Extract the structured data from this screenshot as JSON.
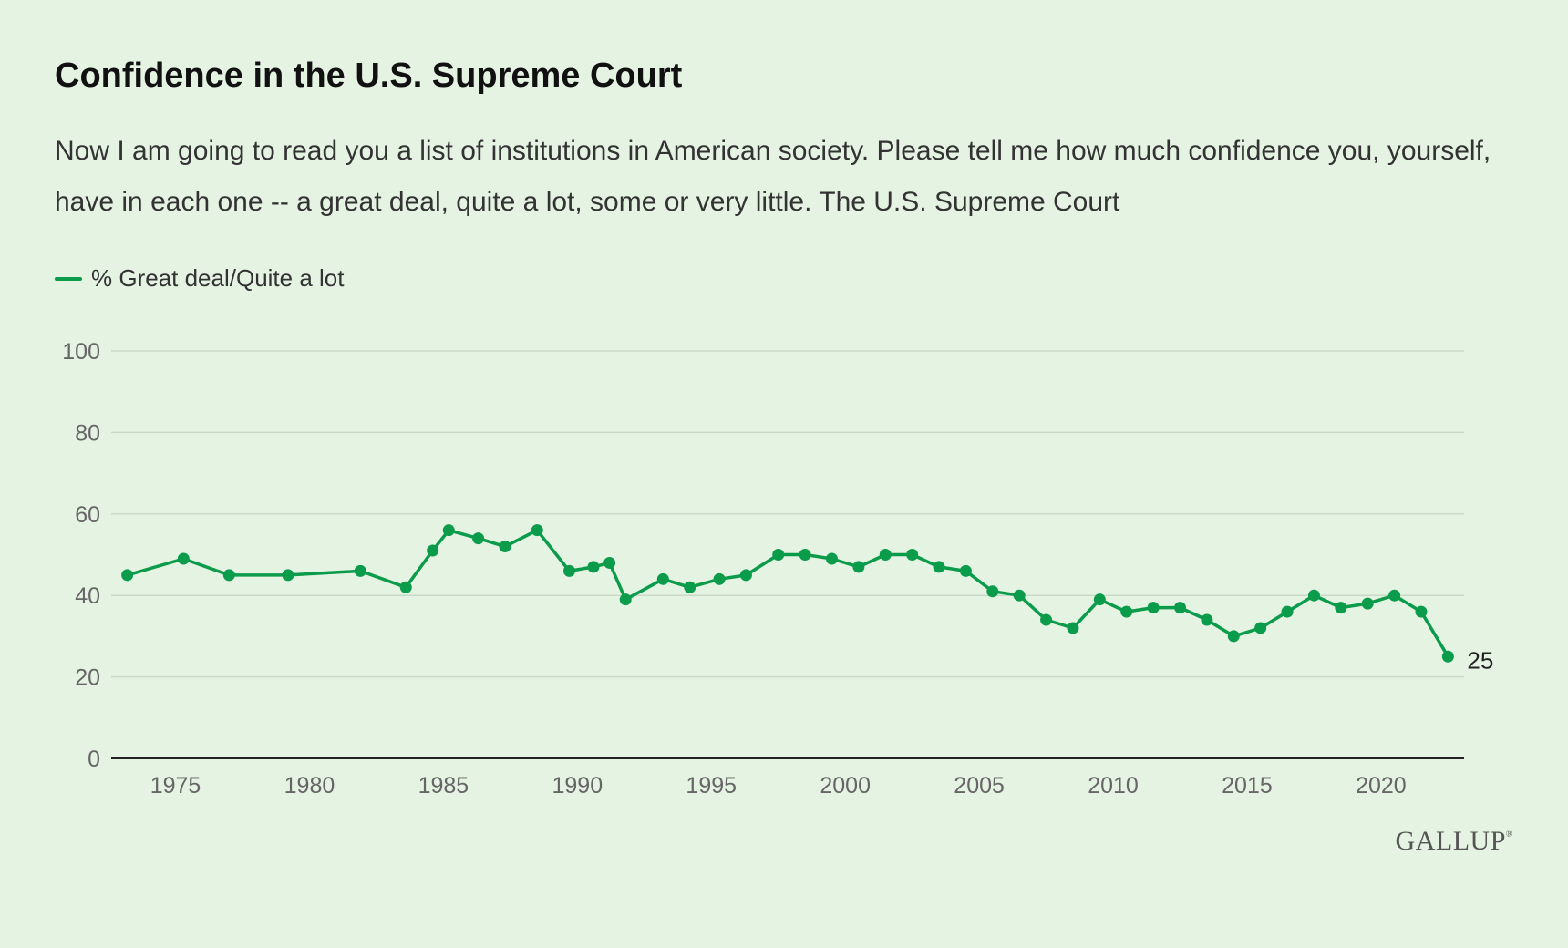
{
  "header": {
    "title": "Confidence in the U.S. Supreme Court",
    "subtitle": "Now I am going to read you a list of institutions in American society. Please tell me how much confidence you, yourself, have in each one -- a great deal, quite a lot, some or very little. The U.S. Supreme Court"
  },
  "logo": {
    "text": "GALLUP"
  },
  "colors": {
    "series": "#0a9b4b",
    "background": "#e5f3e3",
    "grid": "#c9d9c7"
  },
  "chart_data": {
    "type": "line",
    "title": "Confidence in the U.S. Supreme Court",
    "xlabel": "",
    "ylabel": "",
    "xlim": [
      1972.6,
      2023.1
    ],
    "ylim": [
      0,
      100
    ],
    "x_ticks": [
      1975,
      1980,
      1985,
      1990,
      1995,
      2000,
      2005,
      2010,
      2015,
      2020
    ],
    "y_ticks": [
      0,
      20,
      40,
      60,
      80,
      100
    ],
    "grid": true,
    "legend_position": "top-left",
    "end_label": "25",
    "series": [
      {
        "name": "% Great deal/Quite a lot",
        "points": [
          [
            1973.2,
            45
          ],
          [
            1975.3,
            49
          ],
          [
            1977.0,
            45
          ],
          [
            1979.2,
            45
          ],
          [
            1981.9,
            46
          ],
          [
            1983.6,
            42
          ],
          [
            1984.6,
            51
          ],
          [
            1985.2,
            56
          ],
          [
            1986.3,
            54
          ],
          [
            1987.3,
            52
          ],
          [
            1988.5,
            56
          ],
          [
            1989.7,
            46
          ],
          [
            1990.6,
            47
          ],
          [
            1991.2,
            48
          ],
          [
            1991.8,
            39
          ],
          [
            1993.2,
            44
          ],
          [
            1994.2,
            42
          ],
          [
            1995.3,
            44
          ],
          [
            1996.3,
            45
          ],
          [
            1997.5,
            50
          ],
          [
            1998.5,
            50
          ],
          [
            1999.5,
            49
          ],
          [
            2000.5,
            47
          ],
          [
            2001.5,
            50
          ],
          [
            2002.5,
            50
          ],
          [
            2003.5,
            47
          ],
          [
            2004.5,
            46
          ],
          [
            2005.5,
            41
          ],
          [
            2006.5,
            40
          ],
          [
            2007.5,
            34
          ],
          [
            2008.5,
            32
          ],
          [
            2009.5,
            39
          ],
          [
            2010.5,
            36
          ],
          [
            2011.5,
            37
          ],
          [
            2012.5,
            37
          ],
          [
            2013.5,
            34
          ],
          [
            2014.5,
            30
          ],
          [
            2015.5,
            32
          ],
          [
            2016.5,
            36
          ],
          [
            2017.5,
            40
          ],
          [
            2018.5,
            37
          ],
          [
            2019.5,
            38
          ],
          [
            2020.5,
            40
          ],
          [
            2021.5,
            36
          ],
          [
            2022.5,
            25
          ]
        ]
      }
    ]
  }
}
